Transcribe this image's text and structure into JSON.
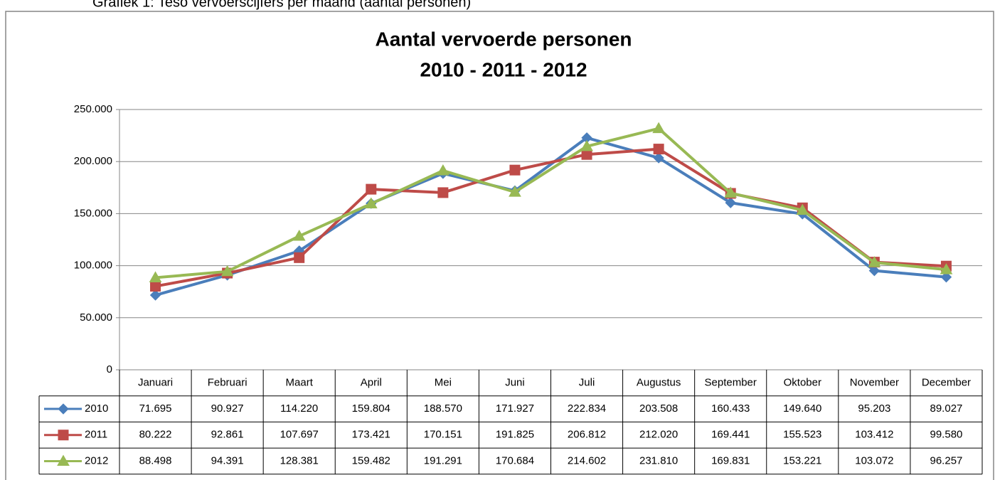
{
  "caption": "Grafiek 1: Teso vervoerscijfers per maand (aantal personen)",
  "chart_data": {
    "type": "line",
    "title": "Aantal vervoerde personen",
    "subtitle": "2010 - 2011 - 2012",
    "categories": [
      "Januari",
      "Februari",
      "Maart",
      "April",
      "Mei",
      "Juni",
      "Juli",
      "Augustus",
      "September",
      "Oktober",
      "November",
      "December"
    ],
    "series": [
      {
        "name": "2010",
        "color": "#4a7ebb",
        "marker": "diamond",
        "values": [
          71695,
          90927,
          114220,
          159804,
          188570,
          171927,
          222834,
          203508,
          160433,
          149640,
          95203,
          89027
        ],
        "value_labels": [
          "71.695",
          "90.927",
          "114.220",
          "159.804",
          "188.570",
          "171.927",
          "222.834",
          "203.508",
          "160.433",
          "149.640",
          "95.203",
          "89.027"
        ]
      },
      {
        "name": "2011",
        "color": "#be4b48",
        "marker": "square",
        "values": [
          80222,
          92861,
          107697,
          173421,
          170151,
          191825,
          206812,
          212020,
          169441,
          155523,
          103412,
          99580
        ],
        "value_labels": [
          "80.222",
          "92.861",
          "107.697",
          "173.421",
          "170.151",
          "191.825",
          "206.812",
          "212.020",
          "169.441",
          "155.523",
          "103.412",
          "99.580"
        ]
      },
      {
        "name": "2012",
        "color": "#98b954",
        "marker": "triangle",
        "values": [
          88498,
          94391,
          128381,
          159482,
          191291,
          170684,
          214602,
          231810,
          169831,
          153221,
          103072,
          96257
        ],
        "value_labels": [
          "88.498",
          "94.391",
          "128.381",
          "159.482",
          "191.291",
          "170.684",
          "214.602",
          "231.810",
          "169.831",
          "153.221",
          "103.072",
          "96.257"
        ]
      }
    ],
    "ylim": [
      0,
      250000
    ],
    "yticks": [
      0,
      {
        "value": 50000,
        "label": "50.000"
      },
      {
        "value": 100000,
        "label": "100.000"
      },
      {
        "value": 150000,
        "label": "150.000"
      },
      {
        "value": 200000,
        "label": "200.000"
      },
      {
        "value": 250000,
        "label": "250.000"
      }
    ],
    "grid": true,
    "data_table": true
  }
}
